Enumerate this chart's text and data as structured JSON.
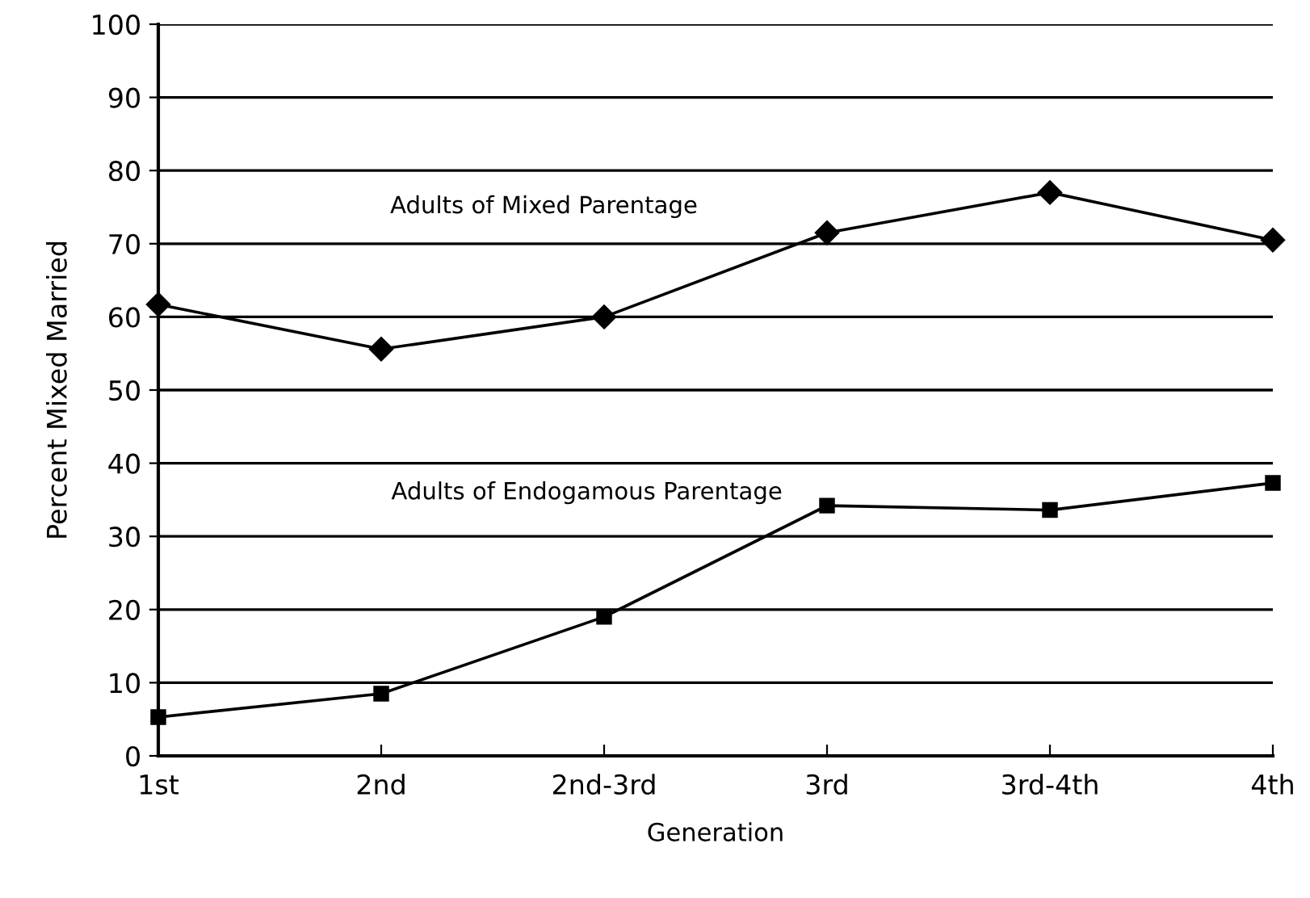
{
  "chart_data": {
    "type": "line",
    "xlabel": "Generation",
    "ylabel": "Percent Mixed Married",
    "categories": [
      "1st",
      "2nd",
      "2nd-3rd",
      "3rd",
      "3rd-4th",
      "4th"
    ],
    "series": [
      {
        "name": "Adults of Mixed Parentage",
        "color": "#000000",
        "marker": "diamond",
        "values": [
          61.7,
          55.6,
          60,
          71.5,
          77,
          70.5
        ]
      },
      {
        "name": "Adults of Endogamous Parentage",
        "color": "#000000",
        "marker": "square",
        "values": [
          5.3,
          8.5,
          19,
          34.2,
          33.6,
          37.3
        ]
      }
    ],
    "ylim": [
      0,
      100
    ],
    "yticks": [
      0,
      10,
      20,
      30,
      40,
      50,
      60,
      70,
      80,
      90,
      100
    ],
    "grid": "y",
    "legend": false,
    "line_style": "solid"
  }
}
